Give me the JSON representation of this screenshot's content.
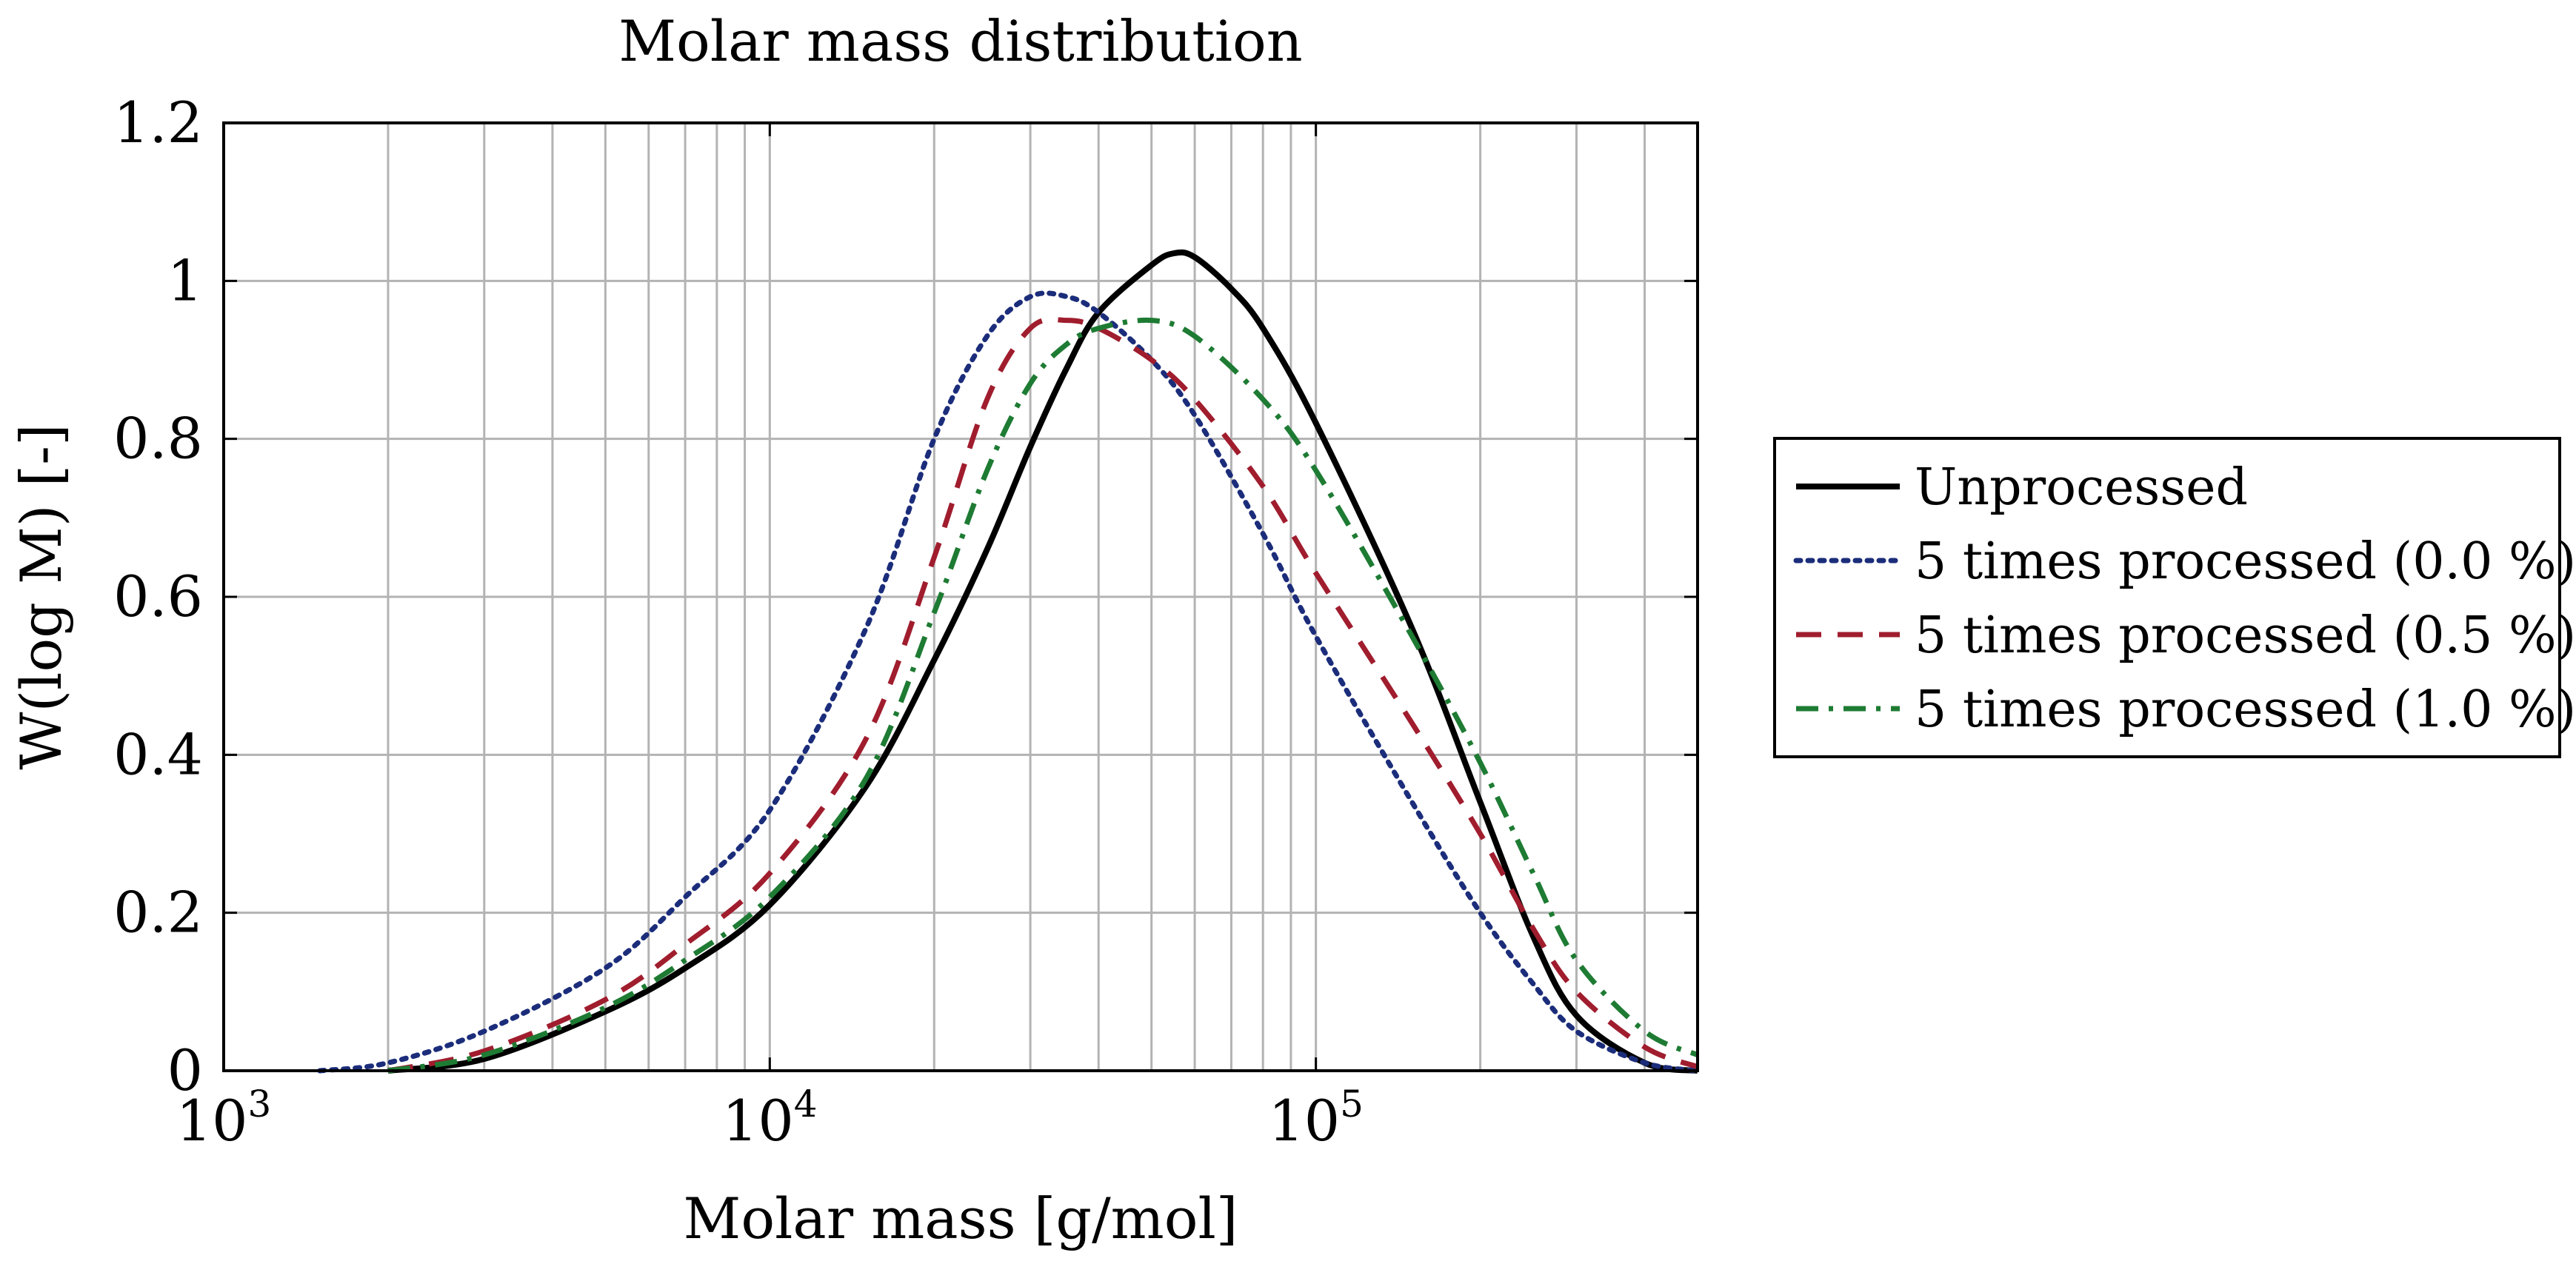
{
  "chart_data": {
    "type": "line",
    "title": "Molar mass distribution",
    "xlabel": "Molar mass [g/mol]",
    "ylabel": "W(log M) [-]",
    "xscale": "log",
    "xlim": [
      1000,
      500000
    ],
    "ylim": [
      0,
      1.2
    ],
    "x_ticks": [
      {
        "base": "10",
        "exp": "3",
        "value": 1000
      },
      {
        "base": "10",
        "exp": "4",
        "value": 10000
      },
      {
        "base": "10",
        "exp": "5",
        "value": 100000
      }
    ],
    "y_ticks": [
      {
        "label": "0",
        "value": 0
      },
      {
        "label": "0.2",
        "value": 0.2
      },
      {
        "label": "0.4",
        "value": 0.4
      },
      {
        "label": "0.6",
        "value": 0.6
      },
      {
        "label": "0.8",
        "value": 0.8
      },
      {
        "label": "1",
        "value": 1.0
      },
      {
        "label": "1.2",
        "value": 1.2
      }
    ],
    "grid": true,
    "legend_position": "outside-right",
    "series": [
      {
        "name": "Unprocessed",
        "color": "#000000",
        "dash": "solid",
        "x": [
          2000,
          3000,
          5000,
          7000,
          10000,
          15000,
          20000,
          25000,
          30000,
          35000,
          40000,
          50000,
          55000,
          60000,
          70000,
          80000,
          100000,
          150000,
          200000,
          250000,
          300000,
          400000,
          500000
        ],
        "y": [
          0.0,
          0.015,
          0.075,
          0.13,
          0.21,
          0.36,
          0.52,
          0.66,
          0.79,
          0.89,
          0.96,
          1.02,
          1.035,
          1.03,
          0.99,
          0.94,
          0.82,
          0.56,
          0.34,
          0.17,
          0.07,
          0.01,
          0.0
        ]
      },
      {
        "name": "5 times processed (0.0 %)",
        "color": "#1b2d7a",
        "dash": "dotted",
        "x": [
          1500,
          2000,
          3000,
          5000,
          7000,
          10000,
          15000,
          20000,
          25000,
          30000,
          35000,
          40000,
          50000,
          60000,
          80000,
          100000,
          150000,
          200000,
          250000,
          300000,
          400000,
          500000
        ],
        "y": [
          0.0,
          0.01,
          0.05,
          0.13,
          0.22,
          0.33,
          0.56,
          0.8,
          0.93,
          0.98,
          0.98,
          0.96,
          0.9,
          0.83,
          0.68,
          0.55,
          0.34,
          0.2,
          0.11,
          0.05,
          0.01,
          0.0
        ]
      },
      {
        "name": "5 times processed (0.5 %)",
        "color": "#a01d2e",
        "dash": "dashed",
        "x": [
          2000,
          3000,
          5000,
          7000,
          10000,
          15000,
          20000,
          25000,
          30000,
          35000,
          40000,
          50000,
          60000,
          80000,
          100000,
          150000,
          200000,
          250000,
          300000,
          400000,
          500000
        ],
        "y": [
          0.0,
          0.025,
          0.09,
          0.16,
          0.25,
          0.42,
          0.65,
          0.85,
          0.94,
          0.95,
          0.94,
          0.9,
          0.85,
          0.74,
          0.63,
          0.44,
          0.3,
          0.18,
          0.1,
          0.03,
          0.005
        ]
      },
      {
        "name": "5 times processed (1.0 %)",
        "color": "#1e7b33",
        "dash": "dashdot",
        "x": [
          2000,
          3000,
          5000,
          7000,
          10000,
          15000,
          20000,
          25000,
          30000,
          35000,
          40000,
          50000,
          60000,
          80000,
          100000,
          150000,
          200000,
          250000,
          300000,
          400000,
          500000
        ],
        "y": [
          0.0,
          0.02,
          0.08,
          0.14,
          0.22,
          0.37,
          0.58,
          0.76,
          0.87,
          0.92,
          0.94,
          0.95,
          0.93,
          0.85,
          0.76,
          0.55,
          0.39,
          0.25,
          0.14,
          0.05,
          0.02
        ]
      }
    ]
  }
}
